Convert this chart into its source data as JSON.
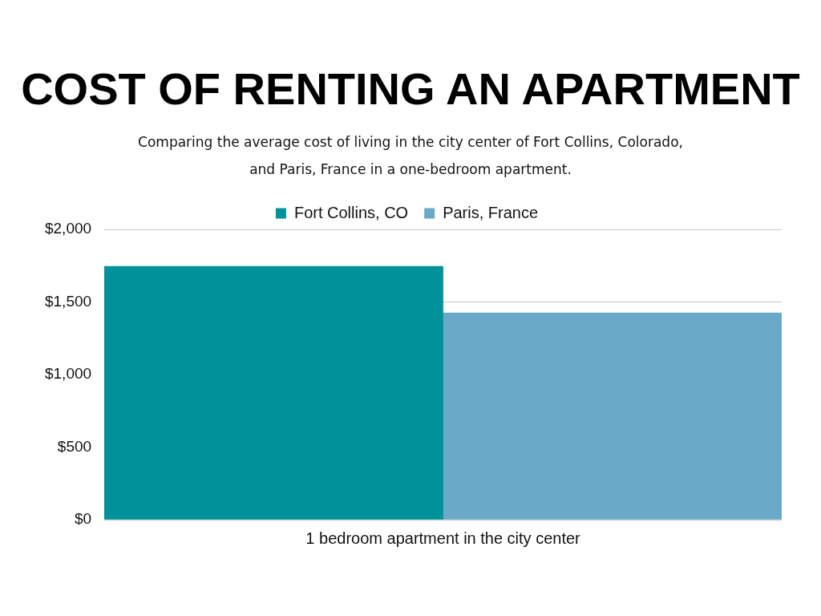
{
  "chart_data": {
    "type": "bar",
    "title": "COST OF RENTING AN APARTMENT",
    "subtitle": "Comparing the average cost of living in the city center of Fort Collins, Colorado, and Paris, France in a one-bedroom apartment.",
    "categories": [
      "1 bedroom apartment in the city center"
    ],
    "series": [
      {
        "name": "Fort Collins, CO",
        "color": "#00929a",
        "values": [
          1745
        ]
      },
      {
        "name": "Paris, France",
        "color": "#6aa9c7",
        "values": [
          1425
        ]
      }
    ],
    "ylim": [
      0,
      2000
    ],
    "yticks": [
      {
        "value": 0,
        "label": "$0"
      },
      {
        "value": 500,
        "label": "$500"
      },
      {
        "value": 1000,
        "label": "$1,000"
      },
      {
        "value": 1500,
        "label": "$1,500"
      },
      {
        "value": 2000,
        "label": "$2,000"
      }
    ],
    "grid": "y",
    "legend": "top"
  }
}
